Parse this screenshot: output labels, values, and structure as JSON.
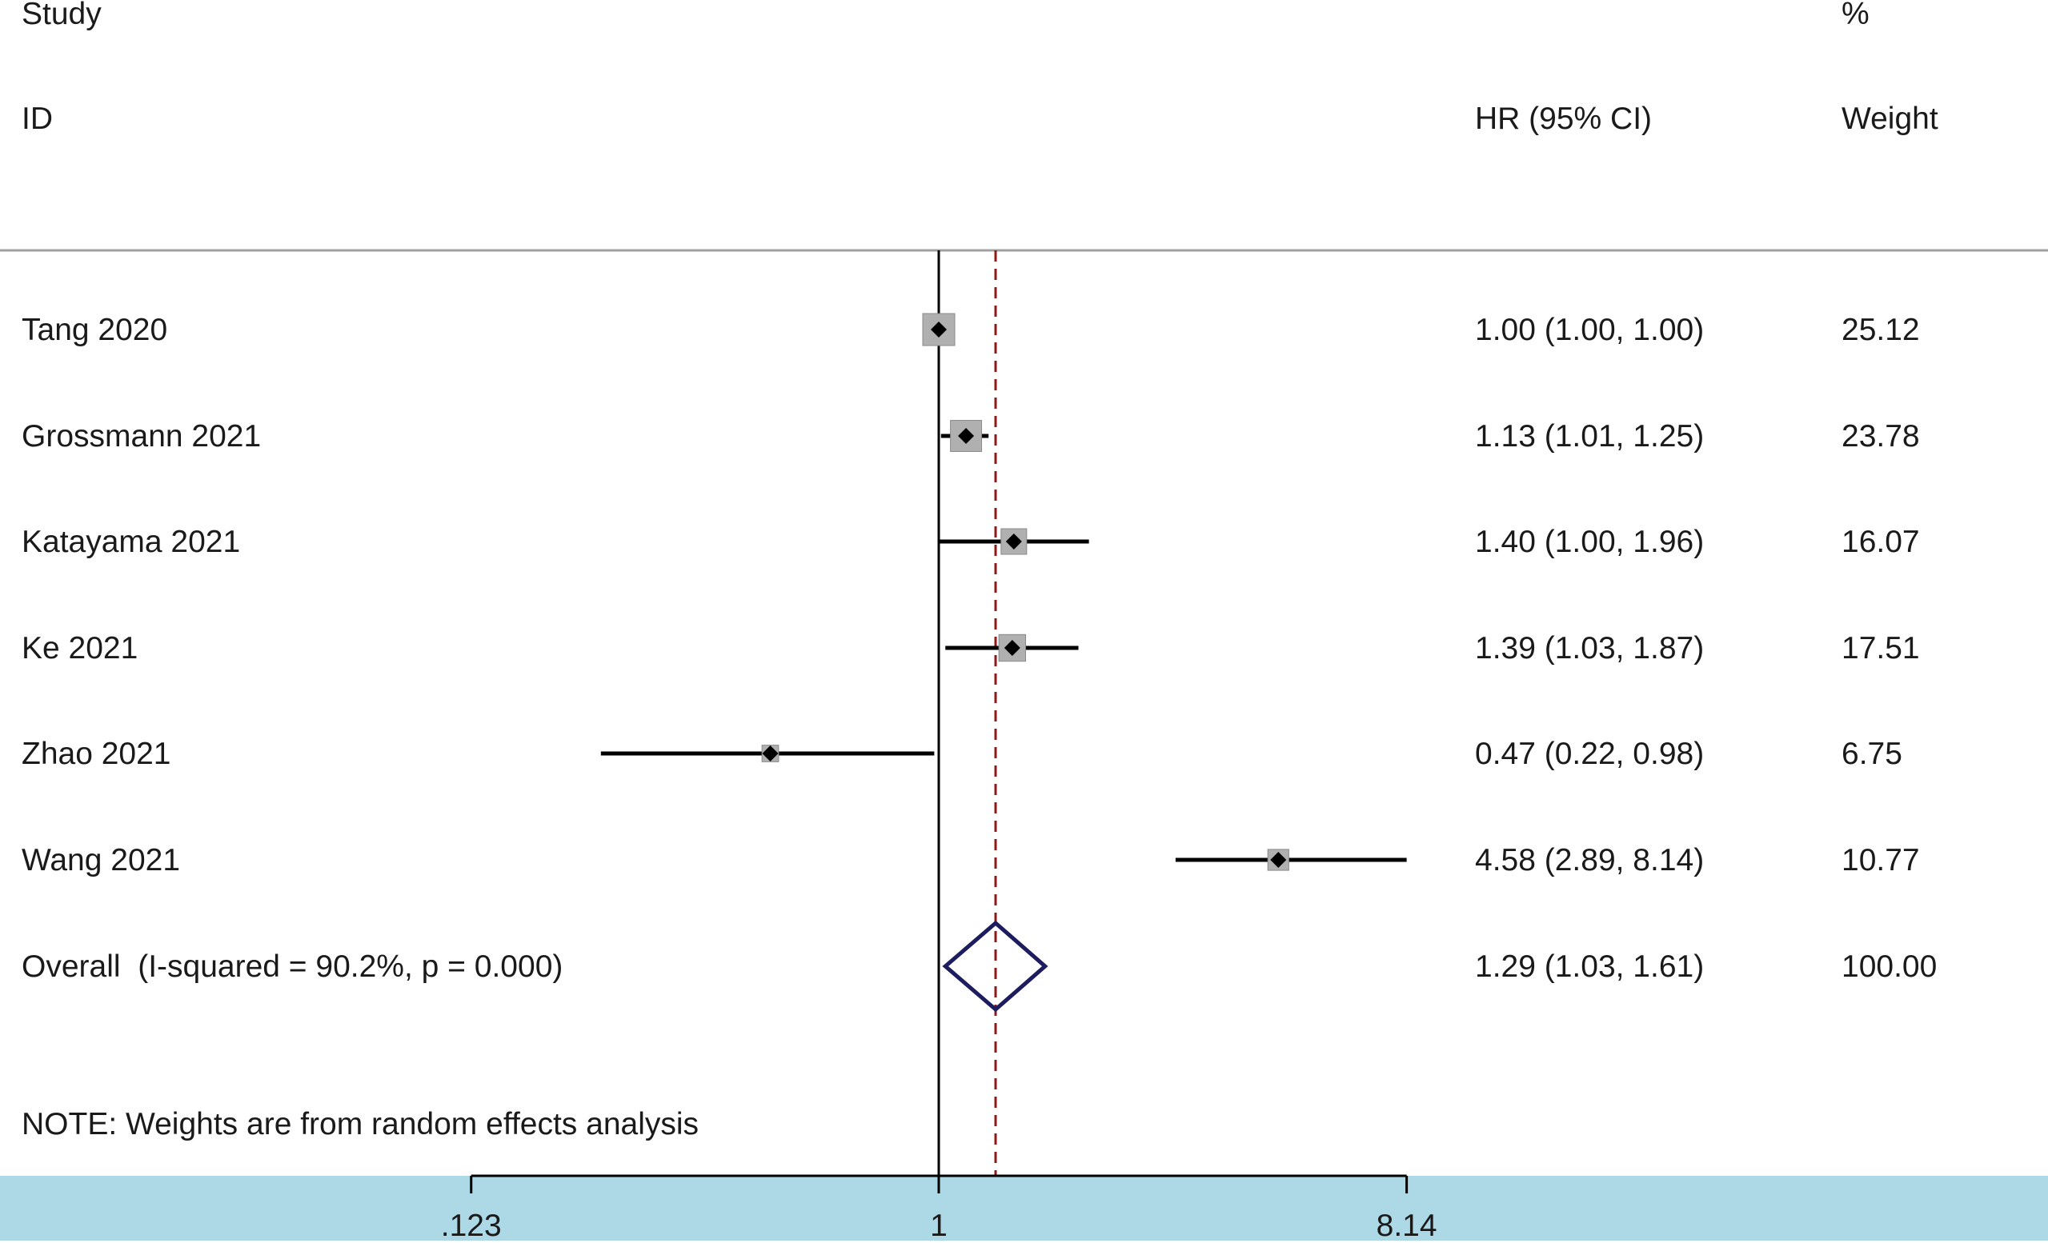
{
  "header": {
    "study_label": "Study",
    "id_label": "ID",
    "effect_label": "HR (95% CI)",
    "pct_label": "%",
    "weight_label": "Weight"
  },
  "note": "NOTE: Weights are from random effects analysis",
  "colors": {
    "axis_band": "#add8e6",
    "overall_diamond": "#1c1c5e",
    "overall_line": "#8b1a1a",
    "marker_box": "#b0b0b0",
    "point": "#000000"
  },
  "chart_data": {
    "type": "forest",
    "scale": "log",
    "xlim": [
      0.123,
      8.14
    ],
    "xticks": [
      0.123,
      1,
      8.14
    ],
    "xtick_labels": [
      ".123",
      "1",
      "8.14"
    ],
    "null_line": 1,
    "overall_line": 1.29,
    "studies": [
      {
        "label": "Tang 2020",
        "hr": 1.0,
        "lo": 1.0,
        "hi": 1.0,
        "ci_text": "1.00 (1.00, 1.00)",
        "weight": 25.12,
        "weight_text": "25.12"
      },
      {
        "label": "Grossmann 2021",
        "hr": 1.13,
        "lo": 1.01,
        "hi": 1.25,
        "ci_text": "1.13 (1.01, 1.25)",
        "weight": 23.78,
        "weight_text": "23.78"
      },
      {
        "label": "Katayama 2021",
        "hr": 1.4,
        "lo": 1.0,
        "hi": 1.96,
        "ci_text": "1.40 (1.00, 1.96)",
        "weight": 16.07,
        "weight_text": "16.07"
      },
      {
        "label": "Ke 2021",
        "hr": 1.39,
        "lo": 1.03,
        "hi": 1.87,
        "ci_text": "1.39 (1.03, 1.87)",
        "weight": 17.51,
        "weight_text": "17.51"
      },
      {
        "label": "Zhao 2021",
        "hr": 0.47,
        "lo": 0.22,
        "hi": 0.98,
        "ci_text": "0.47 (0.22, 0.98)",
        "weight": 6.75,
        "weight_text": "6.75"
      },
      {
        "label": "Wang 2021",
        "hr": 4.58,
        "lo": 2.89,
        "hi": 8.14,
        "ci_text": "4.58 (2.89, 8.14)",
        "weight": 10.77,
        "weight_text": "10.77"
      }
    ],
    "overall": {
      "label": "Overall  (I-squared = 90.2%, p = 0.000)",
      "hr": 1.29,
      "lo": 1.03,
      "hi": 1.61,
      "ci_text": "1.29 (1.03, 1.61)",
      "weight": 100.0,
      "weight_text": "100.00"
    }
  }
}
